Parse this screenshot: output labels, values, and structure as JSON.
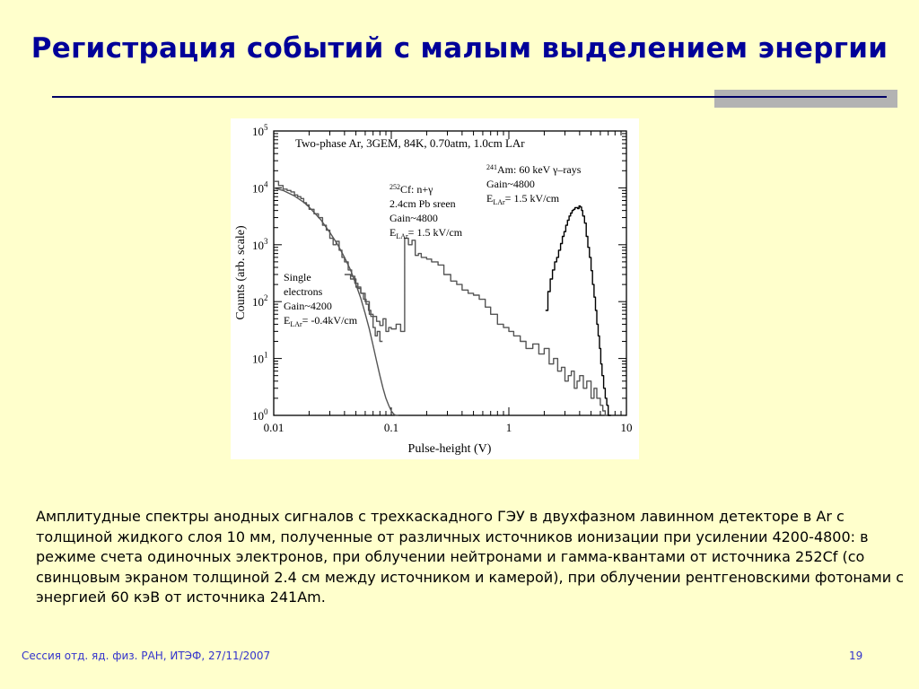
{
  "slide": {
    "title": "Регистрация событий с малым выделением энергии",
    "caption": "Амплитудные спектры анодных сигналов с трехкаскадного ГЭУ в двухфазном лавинном детекторе в Ar с толщиной жидкого слоя 10 мм, полученные от различных источников ионизации при усилении 4200-4800: в режиме счета одиночных электронов,  при облучении нейтронами и гамма-квантами от источника 252Cf (со свинцовым экраном толщиной 2.4 см между источником и камерой), при облучении рентгеновскими фотонами с энергией 60 кэВ от источника 241Am.",
    "footer_left": "Сессия отд. яд. физ. РАН, ИТЭФ, 27/11/2007",
    "page_number": "19"
  },
  "chart_data": {
    "type": "line",
    "title": "Two-phase Ar, 3GEM, 84K, 0.70atm, 1.0cm LAr",
    "xlabel": "Pulse-height (V)",
    "ylabel": "Counts (arb. scale)",
    "x_scale": "log",
    "y_scale": "log",
    "xlim": [
      0.01,
      10
    ],
    "ylim": [
      1,
      100000
    ],
    "x_ticks": [
      "0.01",
      "0.1",
      "1",
      "10"
    ],
    "y_ticks": [
      {
        "base": "10",
        "exp": "0"
      },
      {
        "base": "10",
        "exp": "1"
      },
      {
        "base": "10",
        "exp": "2"
      },
      {
        "base": "10",
        "exp": "3"
      },
      {
        "base": "10",
        "exp": "4"
      },
      {
        "base": "10",
        "exp": "5"
      }
    ],
    "annotations": {
      "single": {
        "l1": "Single",
        "l2": "electrons",
        "l3": "Gain~4200",
        "l4_main": "E",
        "l4_sub": "LAr",
        "l4_rest": "=  -0.4kV/cm"
      },
      "cf": {
        "l1_sup": "252",
        "l1_main": "Cf: n+γ",
        "l2": "2.4cm Pb sreen",
        "l3": "Gain~4800",
        "l4_main": "E",
        "l4_sub": "LAr",
        "l4_rest": "= 1.5 kV/cm"
      },
      "am": {
        "l1_sup": "241",
        "l1_main": "Am: 60 keV γ–rays",
        "l2": "Gain~4800",
        "l3_main": "E",
        "l3_sub": "LAr",
        "l3_rest": "= 1.5 kV/cm"
      }
    },
    "series": [
      {
        "id": "single-electrons-data",
        "style": "histogram",
        "color": "#555555",
        "x": [
          0.01,
          0.011,
          0.012,
          0.013,
          0.014,
          0.015,
          0.016,
          0.017,
          0.018,
          0.019,
          0.02,
          0.022,
          0.024,
          0.026,
          0.028,
          0.03,
          0.032,
          0.034,
          0.036,
          0.038,
          0.04,
          0.043,
          0.046,
          0.049,
          0.052,
          0.055,
          0.058,
          0.061,
          0.064,
          0.067,
          0.07,
          0.073,
          0.076,
          0.08
        ],
        "y": [
          13000,
          11000,
          9500,
          9000,
          8500,
          7500,
          7000,
          6500,
          5500,
          5000,
          4200,
          3500,
          3000,
          2200,
          1800,
          1300,
          1000,
          1150,
          800,
          600,
          500,
          360,
          280,
          210,
          170,
          140,
          110,
          90,
          70,
          55,
          35,
          25,
          30,
          20
        ]
      },
      {
        "id": "single-electrons-fit",
        "style": "line",
        "color": "#555555",
        "x": [
          0.01,
          0.012,
          0.015,
          0.018,
          0.02,
          0.025,
          0.03,
          0.035,
          0.04,
          0.045,
          0.05,
          0.055,
          0.06,
          0.065,
          0.07,
          0.075,
          0.08,
          0.085,
          0.09,
          0.095,
          0.1,
          0.105,
          0.11,
          0.115
        ],
        "y": [
          10000,
          9000,
          7200,
          5600,
          4600,
          2800,
          1650,
          1000,
          600,
          360,
          200,
          115,
          62,
          33,
          17,
          9,
          5,
          3,
          2,
          1.5,
          1.2,
          1.05,
          1.0,
          1.0
        ]
      },
      {
        "id": "cf252-spectrum",
        "style": "histogram",
        "color": "#555555",
        "x": [
          0.04,
          0.045,
          0.05,
          0.055,
          0.06,
          0.065,
          0.07,
          0.075,
          0.08,
          0.085,
          0.09,
          0.095,
          0.1,
          0.11,
          0.12,
          0.13,
          0.14,
          0.15,
          0.16,
          0.17,
          0.18,
          0.2,
          0.22,
          0.25,
          0.28,
          0.32,
          0.36,
          0.4,
          0.45,
          0.5,
          0.56,
          0.63,
          0.7,
          0.8,
          0.9,
          1.0,
          1.1,
          1.25,
          1.4,
          1.6,
          1.8,
          2.0,
          2.2,
          2.4,
          2.6,
          2.8,
          3.0,
          3.2,
          3.4,
          3.6,
          3.8,
          4.0,
          4.3,
          4.6,
          5.0,
          5.3,
          5.6,
          6.0,
          6.3,
          6.6
        ],
        "y": [
          300,
          250,
          180,
          140,
          100,
          60,
          55,
          45,
          38,
          50,
          30,
          35,
          33,
          40,
          30,
          1300,
          1000,
          1200,
          650,
          700,
          600,
          560,
          500,
          440,
          300,
          230,
          200,
          160,
          140,
          130,
          110,
          80,
          60,
          40,
          35,
          30,
          25,
          20,
          15,
          18,
          12,
          15,
          8,
          10,
          6,
          7,
          4,
          5,
          6,
          3,
          4,
          5,
          3,
          4,
          2,
          3,
          2,
          1.5,
          1.2,
          1
        ]
      },
      {
        "id": "am241-spectrum",
        "style": "histogram",
        "color": "#000000",
        "x": [
          2.05,
          2.15,
          2.25,
          2.35,
          2.45,
          2.55,
          2.65,
          2.75,
          2.85,
          2.95,
          3.05,
          3.15,
          3.25,
          3.35,
          3.45,
          3.55,
          3.65,
          3.75,
          3.85,
          3.95,
          4.05,
          4.15,
          4.25,
          4.4,
          4.55,
          4.7,
          4.85,
          5.0,
          5.15,
          5.3,
          5.45,
          5.6,
          5.75,
          5.9,
          6.05,
          6.2,
          6.4,
          6.6,
          6.8,
          7.0
        ],
        "y": [
          70,
          150,
          250,
          360,
          500,
          600,
          800,
          1050,
          1400,
          1700,
          2200,
          2700,
          3200,
          3600,
          4000,
          4200,
          4500,
          4500,
          4300,
          4800,
          4600,
          4000,
          3200,
          2400,
          1400,
          900,
          600,
          350,
          200,
          120,
          70,
          40,
          25,
          15,
          8,
          5,
          3,
          2,
          1.5,
          1
        ]
      }
    ]
  }
}
